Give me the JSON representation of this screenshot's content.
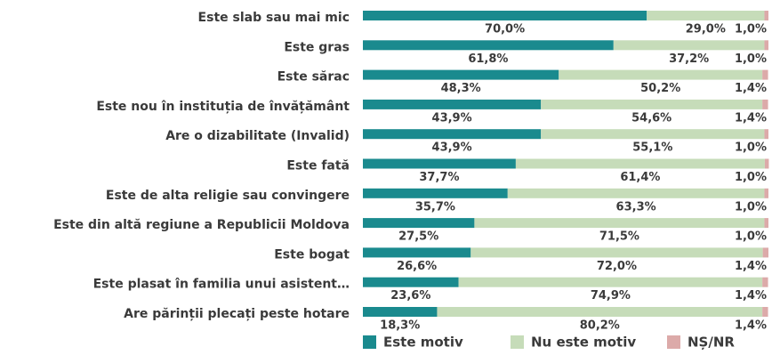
{
  "chart_data": {
    "type": "stacked-barh",
    "categories": [
      "Este slab sau mai mic",
      "Este gras",
      "Este sărac",
      "Este nou în instituția de învățământ",
      "Are o dizabilitate (Invalid)",
      "Este fată",
      "Este de alta religie sau convingere",
      "Este din altă regiune a Republicii Moldova",
      "Este bogat",
      "Este plasat în familia unui asistent…",
      "Are părinții plecați peste hotare"
    ],
    "series": [
      {
        "name": "Este motiv",
        "color": "#1a8a8e",
        "values": [
          70.0,
          61.8,
          48.3,
          43.9,
          43.9,
          37.7,
          35.7,
          27.5,
          26.6,
          23.6,
          18.3
        ],
        "value_labels": [
          "70,0%",
          "61,8%",
          "48,3%",
          "43,9%",
          "43,9%",
          "37,7%",
          "35,7%",
          "27,5%",
          "26,6%",
          "23,6%",
          "18,3%"
        ]
      },
      {
        "name": "Nu este motiv",
        "color": "#c6dcb9",
        "values": [
          29.0,
          37.2,
          50.2,
          54.6,
          55.1,
          61.4,
          63.3,
          71.5,
          72.0,
          74.9,
          80.2
        ],
        "value_labels": [
          "29,0%",
          "37,2%",
          "50,2%",
          "54,6%",
          "55,1%",
          "61,4%",
          "63,3%",
          "71,5%",
          "72,0%",
          "74,9%",
          "80,2%"
        ]
      },
      {
        "name": "NȘ/NR",
        "color": "#dcaaa9",
        "values": [
          1.0,
          1.0,
          1.4,
          1.4,
          1.0,
          1.0,
          1.0,
          1.0,
          1.4,
          1.4,
          1.4
        ],
        "value_labels": [
          "1,0%",
          "1,0%",
          "1,4%",
          "1,4%",
          "1,0%",
          "1,0%",
          "1,0%",
          "1,0%",
          "1,4%",
          "1,4%",
          "1,4%"
        ]
      }
    ],
    "xlim": [
      0,
      100
    ]
  }
}
